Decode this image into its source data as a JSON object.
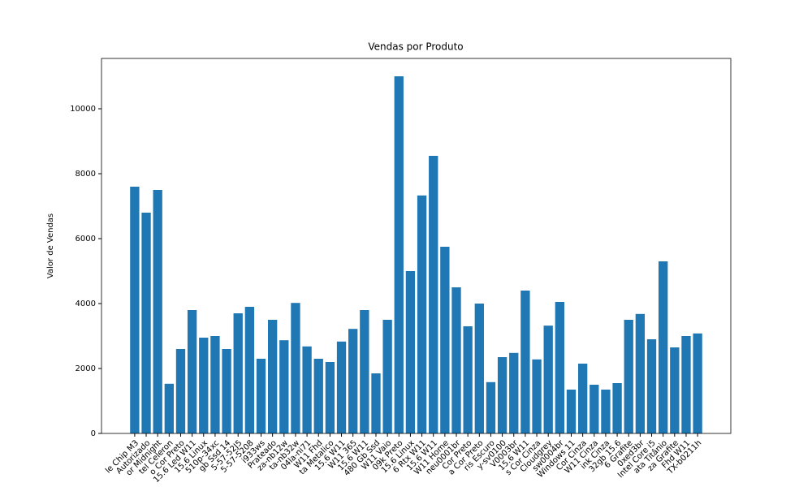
{
  "chart_data": {
    "type": "bar",
    "title": "Vendas por Produto",
    "ylabel": "Valor de Vendas",
    "categories": [
      "le Chip M3",
      "Autorizado",
      "or Midnight",
      "tel Celeron",
      "o Cor Preto",
      "15.6 Led W11",
      "15.6 Linux",
      "510p-34xc",
      "gb Ssd 14",
      "5-57-52J5",
      "5-57-5208",
      "i933ws",
      "Prateado",
      "za-nb12w",
      "ta-nb32w",
      "04la-ni71",
      "W11 Fhd",
      "ta Metalico",
      "15.6 W11",
      "W11 365",
      "15.6 W11",
      "480 Gb Ssd",
      "W11 Vaio",
      "09k Preto",
      "15.6 Linux",
      "6 Rtx W11",
      "15.6 W11",
      "W11 Home",
      "neu0001br",
      "Cor Preto",
      "a Cor Preto",
      "ris Escuro",
      "y-sv0100",
      "V0003br",
      "15.6 W11",
      "s Cor Cinza",
      "Cloudgrey",
      "sw0004br",
      "Windows 11",
      "Cor Cinza",
      "W11 Cinza",
      "ink Cinza",
      "32gb 15.6",
      "6 Grafite",
      "0xed3br",
      "Intel Core i5",
      "ata Titânio",
      "za Grafite",
      "Fhd W11",
      "TX-b0211h"
    ],
    "values": [
      7600,
      6800,
      7500,
      1530,
      2600,
      3800,
      2950,
      3000,
      2600,
      3700,
      3900,
      2300,
      3500,
      2870,
      4020,
      2680,
      2300,
      2200,
      2830,
      3220,
      3800,
      1850,
      3500,
      11000,
      5000,
      7330,
      8550,
      5750,
      4500,
      3300,
      4000,
      1580,
      2350,
      2480,
      4400,
      2280,
      3320,
      4050,
      1350,
      2150,
      1500,
      1350,
      1550,
      3500,
      3680,
      2900,
      5300,
      2650,
      3000,
      3080
    ],
    "color": "#1f77b4",
    "ylim": [
      0,
      11550
    ],
    "yticks": [
      0,
      2000,
      4000,
      6000,
      8000,
      10000
    ],
    "grid": false
  }
}
